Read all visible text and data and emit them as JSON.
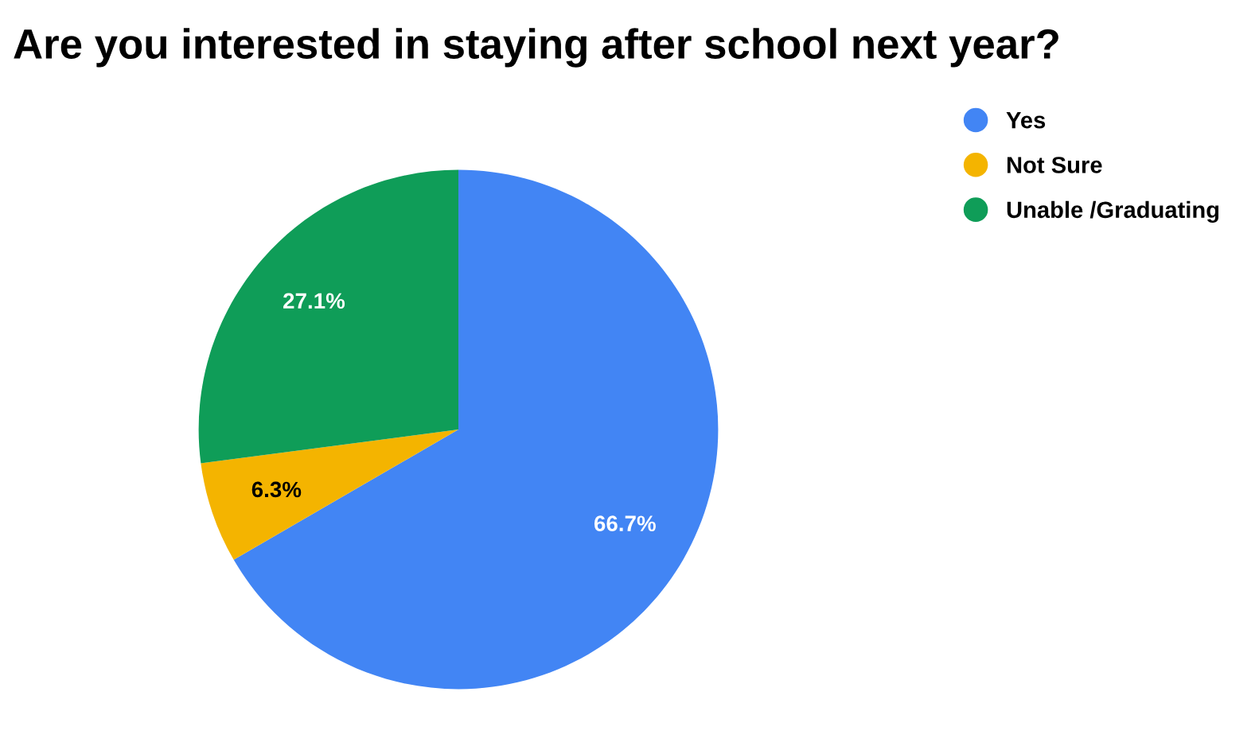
{
  "chart_data": {
    "type": "pie",
    "title": "Are you interested in staying after school next year?",
    "categories": [
      "Yes",
      "Not Sure",
      "Unable /Graduating"
    ],
    "values": [
      66.7,
      6.3,
      27.1
    ],
    "colors": [
      "#4285f4",
      "#f4b400",
      "#0f9d58"
    ],
    "value_labels": [
      "66.7%",
      "6.3%",
      "27.1%"
    ],
    "legend": "top right"
  }
}
